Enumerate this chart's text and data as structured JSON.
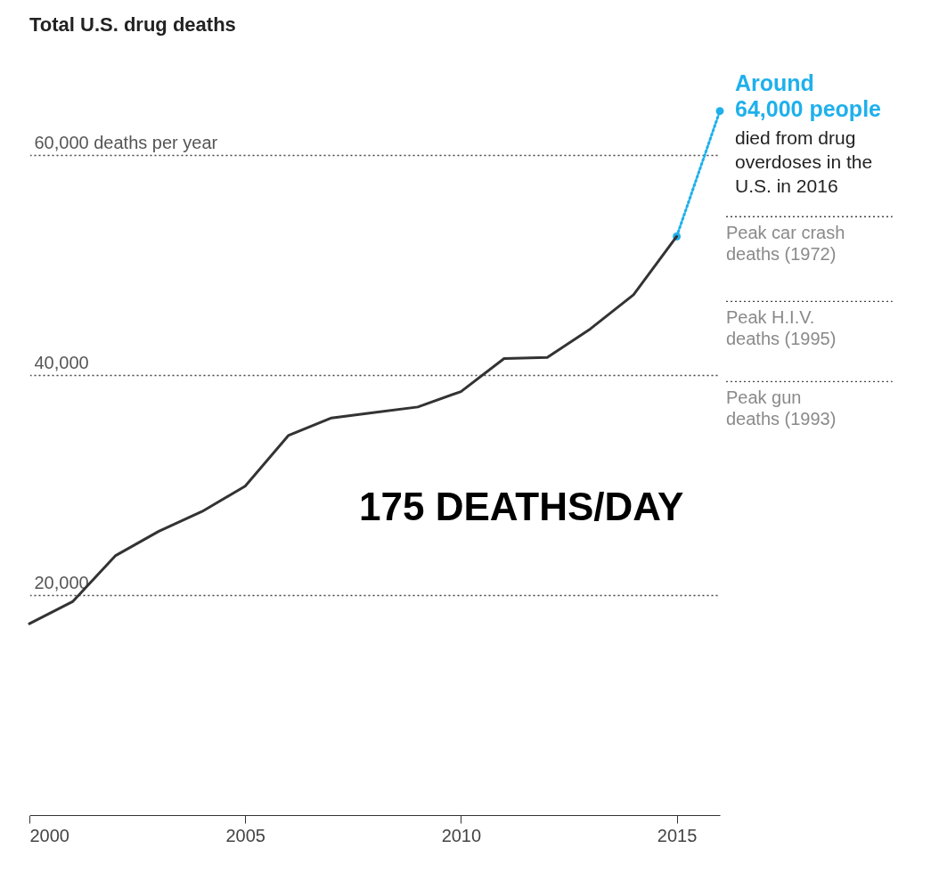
{
  "chart_data": {
    "type": "line",
    "title": "Total U.S. drug deaths",
    "x": [
      2000,
      2001,
      2002,
      2003,
      2004,
      2005,
      2006,
      2007,
      2008,
      2009,
      2010,
      2011,
      2012,
      2013,
      2014,
      2015
    ],
    "series": [
      {
        "color": "#333333",
        "line_style": "solid",
        "values": [
          17400,
          19400,
          23600,
          25800,
          27600,
          29900,
          34500,
          36100,
          36600,
          37100,
          38500,
          41500,
          41600,
          44200,
          47300,
          52600
        ]
      },
      {
        "color": "#1fb0ec",
        "line_style": "dotted",
        "marker": "circle",
        "x": [
          2015,
          2016
        ],
        "values": [
          52600,
          64000
        ]
      }
    ],
    "xlim": [
      2000,
      2016
    ],
    "xticks": [
      2000,
      2005,
      2010,
      2015
    ],
    "ylim": [
      0,
      66000
    ],
    "yticks": [
      {
        "value": 20000,
        "label": "20,000"
      },
      {
        "value": 40000,
        "label": "40,000"
      },
      {
        "value": 60000,
        "label": "60,000 deaths per year"
      }
    ],
    "grid": "y",
    "ref_lines": [
      {
        "axis": "y",
        "value": 54400,
        "label": "Peak car crash deaths (1972)"
      },
      {
        "axis": "y",
        "value": 46700,
        "label": "Peak H.I.V. deaths (1995)"
      },
      {
        "axis": "y",
        "value": 39400,
        "label": "Peak gun deaths (1993)"
      }
    ],
    "annotations": [
      {
        "text": "Around 64,000 people",
        "x": 2016,
        "y": 64000
      },
      "died from drug overdoses in the U.S. in 2016",
      "175 DEATHS/DAY"
    ]
  }
}
